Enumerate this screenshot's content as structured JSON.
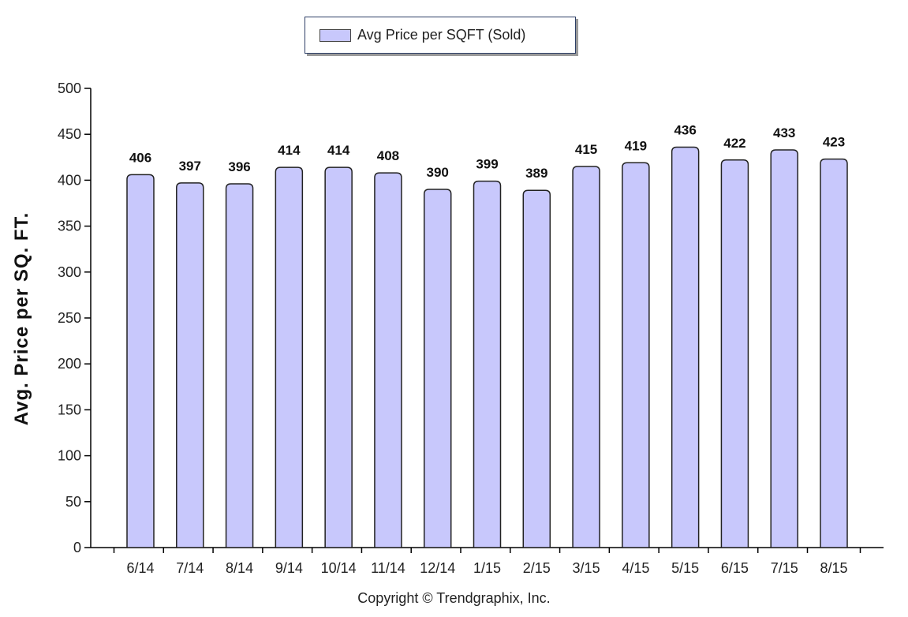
{
  "legend": {
    "label": "Avg Price per SQFT (Sold)"
  },
  "copyright": "Copyright © Trendgraphix, Inc.",
  "colors": {
    "bar_fill": "#c8c8fc",
    "bar_stroke": "#222222"
  },
  "chart_data": {
    "type": "bar",
    "title": "",
    "xlabel": "",
    "ylabel": "Avg. Price per SQ. FT.",
    "ylim": [
      0,
      500
    ],
    "yticks": [
      0,
      50,
      100,
      150,
      200,
      250,
      300,
      350,
      400,
      450,
      500
    ],
    "grid": false,
    "legend_position": "top-center",
    "categories": [
      "6/14",
      "7/14",
      "8/14",
      "9/14",
      "10/14",
      "11/14",
      "12/14",
      "1/15",
      "2/15",
      "3/15",
      "4/15",
      "5/15",
      "6/15",
      "7/15",
      "8/15"
    ],
    "series": [
      {
        "name": "Avg Price per SQFT (Sold)",
        "values": [
          406,
          397,
          396,
          414,
          414,
          408,
          390,
          399,
          389,
          415,
          419,
          436,
          422,
          433,
          423
        ]
      }
    ]
  }
}
